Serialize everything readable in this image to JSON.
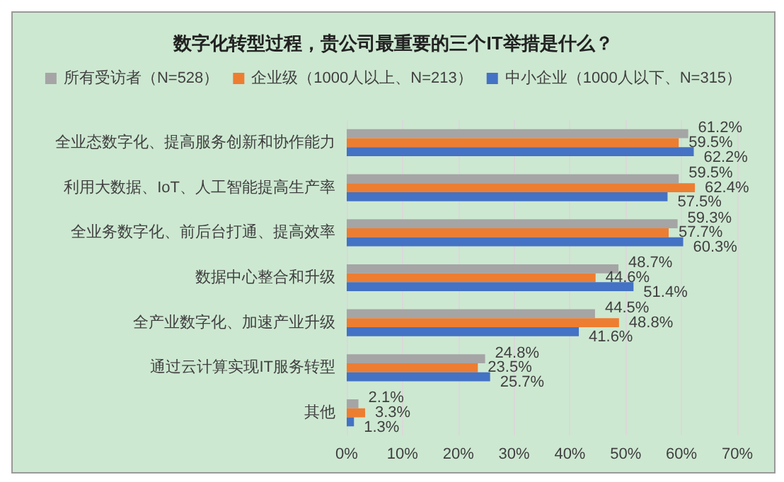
{
  "chart_data": {
    "type": "bar",
    "orientation": "horizontal",
    "title": "数字化转型过程，贵公司最重要的三个IT举措是什么？",
    "categories": [
      "全业态数字化、提高服务创新和协作能力",
      "利用大数据、IoT、人工智能提高生产率",
      "全业务数字化、前后台打通、提高效率",
      "数据中心整合和升级",
      "全产业数字化、加速产业升级",
      "通过云计算实现IT服务转型",
      "其他"
    ],
    "series": [
      {
        "name": "所有受访者（N=528）",
        "color": "#a5a5a5",
        "values": [
          61.2,
          59.5,
          59.3,
          48.7,
          44.5,
          24.8,
          2.1
        ],
        "value_labels": [
          "61.2%",
          "59.5%",
          "59.3%",
          "48.7%",
          "44.5%",
          "24.8%",
          "2.1%"
        ]
      },
      {
        "name": "企业级（1000人以上、N=213）",
        "color": "#ed7d31",
        "values": [
          59.5,
          62.4,
          57.7,
          44.6,
          48.8,
          23.5,
          3.3
        ],
        "value_labels": [
          "59.5%",
          "62.4%",
          "57.7%",
          "44.6%",
          "48.8%",
          "23.5%",
          "3.3%"
        ]
      },
      {
        "name": "中小企业（1000人以下、N=315）",
        "color": "#4472c4",
        "values": [
          62.2,
          57.5,
          60.3,
          51.4,
          41.6,
          25.7,
          1.3
        ],
        "value_labels": [
          "62.2%",
          "57.5%",
          "60.3%",
          "51.4%",
          "41.6%",
          "25.7%",
          "1.3%"
        ]
      }
    ],
    "xlim": [
      0,
      70
    ],
    "xticks": [
      {
        "value": 0,
        "label": "0%"
      },
      {
        "value": 10,
        "label": "10%"
      },
      {
        "value": 20,
        "label": "20%"
      },
      {
        "value": 30,
        "label": "30%"
      },
      {
        "value": 40,
        "label": "40%"
      },
      {
        "value": 50,
        "label": "50%"
      },
      {
        "value": 60,
        "label": "60%"
      },
      {
        "value": 70,
        "label": "70%"
      }
    ],
    "grid": "x",
    "legend": "top"
  }
}
